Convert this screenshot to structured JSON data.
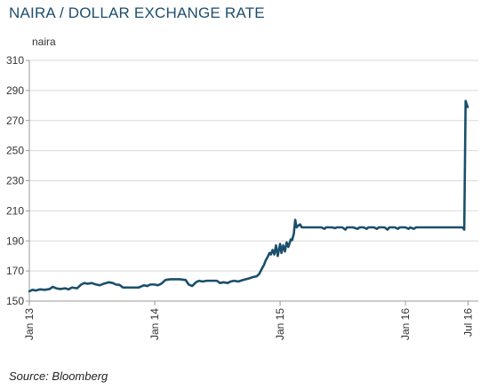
{
  "title": "NAIRA / DOLLAR EXCHANGE RATE",
  "source": "Source: Bloomberg",
  "colors": {
    "line": "#1b4f6b",
    "grid": "#d9d9d9",
    "axis": "#999999",
    "title": "#1d4e6c"
  },
  "chart_data": {
    "type": "line",
    "title": "NAIRA / DOLLAR EXCHANGE RATE",
    "ylabel": "naira",
    "xlabel": "",
    "ylim": [
      150,
      310
    ],
    "xlim": [
      "2013-01-01",
      "2016-07-31"
    ],
    "yticks": [
      150,
      170,
      190,
      210,
      230,
      250,
      270,
      290,
      310
    ],
    "xticks": [
      {
        "label": "Jan 13",
        "date": "2013-01-01"
      },
      {
        "label": "Jan 14",
        "date": "2014-01-01"
      },
      {
        "label": "Jan 15",
        "date": "2015-01-01"
      },
      {
        "label": "Jan 16",
        "date": "2016-01-01"
      },
      {
        "label": "Jul 16",
        "date": "2016-07-01"
      }
    ],
    "grid": "horizontal",
    "legend": "none",
    "series": [
      {
        "points": [
          [
            "2013-01-01",
            156.5
          ],
          [
            "2013-01-10",
            157.5
          ],
          [
            "2013-01-20",
            157.0
          ],
          [
            "2013-02-01",
            157.8
          ],
          [
            "2013-02-15",
            157.5
          ],
          [
            "2013-03-01",
            158.0
          ],
          [
            "2013-03-10",
            159.5
          ],
          [
            "2013-03-20",
            158.5
          ],
          [
            "2013-04-01",
            158.0
          ],
          [
            "2013-04-15",
            158.5
          ],
          [
            "2013-04-25",
            157.8
          ],
          [
            "2013-05-05",
            159.0
          ],
          [
            "2013-05-20",
            158.5
          ],
          [
            "2013-06-01",
            161.0
          ],
          [
            "2013-06-10",
            162.0
          ],
          [
            "2013-06-20",
            161.5
          ],
          [
            "2013-07-01",
            162.0
          ],
          [
            "2013-07-15",
            161.0
          ],
          [
            "2013-07-25",
            160.5
          ],
          [
            "2013-08-05",
            161.5
          ],
          [
            "2013-08-20",
            162.5
          ],
          [
            "2013-09-01",
            162.0
          ],
          [
            "2013-09-10",
            161.0
          ],
          [
            "2013-09-20",
            160.8
          ],
          [
            "2013-10-01",
            159.0
          ],
          [
            "2013-10-15",
            159.0
          ],
          [
            "2013-11-01",
            159.0
          ],
          [
            "2013-11-15",
            159.0
          ],
          [
            "2013-12-01",
            160.5
          ],
          [
            "2013-12-10",
            160.0
          ],
          [
            "2013-12-20",
            161.0
          ],
          [
            "2014-01-01",
            161.0
          ],
          [
            "2014-01-10",
            160.5
          ],
          [
            "2014-01-20",
            161.5
          ],
          [
            "2014-02-01",
            164.0
          ],
          [
            "2014-02-15",
            164.5
          ],
          [
            "2014-03-01",
            164.5
          ],
          [
            "2014-03-15",
            164.5
          ],
          [
            "2014-04-01",
            164.0
          ],
          [
            "2014-04-10",
            161.0
          ],
          [
            "2014-04-20",
            160.0
          ],
          [
            "2014-05-01",
            162.5
          ],
          [
            "2014-05-10",
            163.5
          ],
          [
            "2014-05-20",
            163.0
          ],
          [
            "2014-06-01",
            163.5
          ],
          [
            "2014-06-15",
            163.5
          ],
          [
            "2014-07-01",
            163.5
          ],
          [
            "2014-07-10",
            162.0
          ],
          [
            "2014-07-20",
            162.5
          ],
          [
            "2014-08-01",
            162.0
          ],
          [
            "2014-08-10",
            163.0
          ],
          [
            "2014-08-20",
            163.5
          ],
          [
            "2014-09-01",
            163.0
          ],
          [
            "2014-09-15",
            164.0
          ],
          [
            "2014-10-01",
            165.0
          ],
          [
            "2014-10-15",
            166.0
          ],
          [
            "2014-10-25",
            166.5
          ],
          [
            "2014-11-01",
            168.0
          ],
          [
            "2014-11-10",
            172.0
          ],
          [
            "2014-11-15",
            174.0
          ],
          [
            "2014-11-20",
            177.0
          ],
          [
            "2014-11-25",
            179.0
          ],
          [
            "2014-12-01",
            182.0
          ],
          [
            "2014-12-05",
            181.0
          ],
          [
            "2014-12-10",
            184.0
          ],
          [
            "2014-12-15",
            181.0
          ],
          [
            "2014-12-20",
            187.0
          ],
          [
            "2014-12-25",
            180.0
          ],
          [
            "2015-01-01",
            188.0
          ],
          [
            "2015-01-05",
            182.0
          ],
          [
            "2015-01-10",
            187.0
          ],
          [
            "2015-01-15",
            183.0
          ],
          [
            "2015-01-20",
            189.0
          ],
          [
            "2015-01-25",
            186.0
          ],
          [
            "2015-02-01",
            191.0
          ],
          [
            "2015-02-05",
            190.5
          ],
          [
            "2015-02-10",
            195.0
          ],
          [
            "2015-02-14",
            204.0
          ],
          [
            "2015-02-18",
            199.0
          ],
          [
            "2015-02-22",
            200.0
          ],
          [
            "2015-02-28",
            201.0
          ],
          [
            "2015-03-05",
            199.0
          ],
          [
            "2015-03-15",
            199.0
          ],
          [
            "2015-04-01",
            199.0
          ],
          [
            "2015-04-15",
            199.0
          ],
          [
            "2015-05-01",
            199.0
          ],
          [
            "2015-05-10",
            198.0
          ],
          [
            "2015-05-15",
            199.0
          ],
          [
            "2015-06-01",
            199.0
          ],
          [
            "2015-06-10",
            198.5
          ],
          [
            "2015-06-15",
            199.0
          ],
          [
            "2015-07-01",
            199.0
          ],
          [
            "2015-07-10",
            197.5
          ],
          [
            "2015-07-15",
            199.0
          ],
          [
            "2015-08-01",
            199.0
          ],
          [
            "2015-08-15",
            198.0
          ],
          [
            "2015-08-20",
            199.0
          ],
          [
            "2015-09-01",
            199.0
          ],
          [
            "2015-09-10",
            198.0
          ],
          [
            "2015-09-15",
            199.0
          ],
          [
            "2015-10-01",
            199.0
          ],
          [
            "2015-10-10",
            198.0
          ],
          [
            "2015-10-15",
            199.0
          ],
          [
            "2015-11-01",
            199.0
          ],
          [
            "2015-11-10",
            197.5
          ],
          [
            "2015-11-15",
            199.0
          ],
          [
            "2015-12-01",
            199.0
          ],
          [
            "2015-12-10",
            198.0
          ],
          [
            "2015-12-15",
            199.0
          ],
          [
            "2016-01-01",
            199.0
          ],
          [
            "2016-01-10",
            198.0
          ],
          [
            "2016-01-15",
            199.0
          ],
          [
            "2016-01-25",
            198.0
          ],
          [
            "2016-02-01",
            199.0
          ],
          [
            "2016-02-15",
            199.0
          ],
          [
            "2016-03-01",
            199.0
          ],
          [
            "2016-03-15",
            199.0
          ],
          [
            "2016-04-01",
            199.0
          ],
          [
            "2016-04-15",
            199.0
          ],
          [
            "2016-05-01",
            199.0
          ],
          [
            "2016-05-15",
            199.0
          ],
          [
            "2016-06-01",
            199.0
          ],
          [
            "2016-06-15",
            199.0
          ],
          [
            "2016-06-20",
            197.5
          ],
          [
            "2016-06-22",
            240.0
          ],
          [
            "2016-06-24",
            283.0
          ],
          [
            "2016-06-27",
            281.0
          ],
          [
            "2016-06-30",
            279.0
          ]
        ]
      }
    ]
  }
}
